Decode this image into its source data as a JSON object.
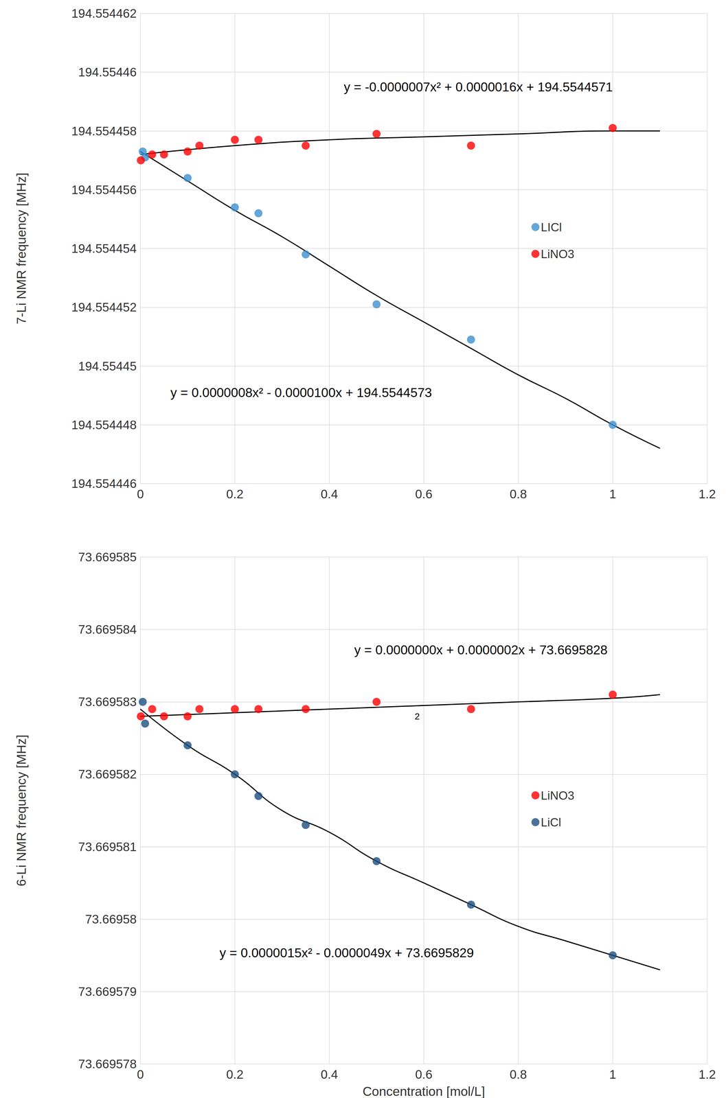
{
  "chart_data": [
    {
      "type": "scatter",
      "ylabel": "7-Li NMR frequency [MHz]",
      "xlim": [
        0,
        1.2
      ],
      "xticks": [
        0,
        0.2,
        0.4,
        0.6,
        0.8,
        1,
        1.2
      ],
      "ylim": [
        194.554446,
        194.554462
      ],
      "yticks": [
        194.554446,
        194.554448,
        194.55445,
        194.554452,
        194.554454,
        194.554456,
        194.554458,
        194.55446,
        194.554462
      ],
      "grid": true,
      "legend": "right",
      "annotations": [
        "y = -0.0000007x² + 0.0000016x + 194.5544571",
        "y = 0.0000008x² - 0.0000100x + 194.5544573"
      ],
      "series": [
        {
          "name": "LICl",
          "color": "#3d8fd1",
          "marker": "circle",
          "x": [
            0.005,
            0.01,
            0.1,
            0.2,
            0.25,
            0.35,
            0.5,
            0.7,
            1
          ],
          "values": [
            194.5544573,
            194.5544571,
            194.5544564,
            194.5544554,
            194.5544552,
            194.5544538,
            194.5544521,
            194.5544509,
            194.554448
          ]
        },
        {
          "name": "LiNO3",
          "color": "#ff0000",
          "marker": "circle",
          "x": [
            0.001,
            0.025,
            0.05,
            0.1,
            0.125,
            0.2,
            0.25,
            0.35,
            0.5,
            0.7,
            1
          ],
          "values": [
            194.554457,
            194.5544572,
            194.5544572,
            194.5544573,
            194.5544575,
            194.5544577,
            194.5544577,
            194.5544575,
            194.5544579,
            194.5544575,
            194.5544581
          ]
        },
        {
          "type": "line",
          "color": "#000000",
          "line_style": "solid",
          "x": [
            0,
            0.2,
            0.4,
            0.6,
            0.8,
            1,
            1.1
          ],
          "values": [
            194.5544572,
            194.5544575,
            194.5544577,
            194.5544578,
            194.5544579,
            194.554458,
            194.554458
          ]
        },
        {
          "type": "line",
          "color": "#000000",
          "line_style": "solid",
          "x": [
            0,
            0.1,
            0.2,
            0.3,
            0.4,
            0.5,
            0.6,
            0.7,
            0.8,
            0.9,
            1,
            1.1
          ],
          "values": [
            194.5544573,
            194.5544563,
            194.5544553,
            194.5544544,
            194.5544534,
            194.5544524,
            194.5544515,
            194.5544506,
            194.5544497,
            194.5544489,
            194.554448,
            194.5544472
          ]
        }
      ]
    },
    {
      "type": "scatter",
      "xlabel": "Concentration [mol/L]",
      "ylabel": "6-Li NMR frequency [MHz]",
      "xlim": [
        0,
        1.2
      ],
      "xticks": [
        0,
        0.2,
        0.4,
        0.6,
        0.8,
        1,
        1.2
      ],
      "ylim": [
        73.669578,
        73.669585
      ],
      "yticks": [
        73.669578,
        73.669579,
        73.66958,
        73.669581,
        73.669582,
        73.669583,
        73.669584,
        73.669585
      ],
      "grid": true,
      "legend": "right",
      "annotations": [
        "y = 0.0000000x + 0.0000002x + 73.6695828",
        "2",
        "y = 0.0000015x² - 0.0000049x + 73.6695829"
      ],
      "series": [
        {
          "name": "LiNO3",
          "color": "#ff0000",
          "marker": "circle",
          "x": [
            0.001,
            0.025,
            0.05,
            0.1,
            0.125,
            0.2,
            0.25,
            0.35,
            0.5,
            0.7,
            1
          ],
          "values": [
            73.6695828,
            73.6695829,
            73.6695828,
            73.6695828,
            73.6695829,
            73.6695829,
            73.6695829,
            73.6695829,
            73.669583,
            73.6695829,
            73.6695831
          ]
        },
        {
          "name": "LiCl",
          "color": "#1c4f80",
          "marker": "circle",
          "x": [
            0.005,
            0.01,
            0.1,
            0.2,
            0.25,
            0.35,
            0.5,
            0.7,
            1
          ],
          "values": [
            73.669583,
            73.6695827,
            73.6695824,
            73.669582,
            73.6695817,
            73.6695813,
            73.6695808,
            73.6695802,
            73.6695795
          ]
        },
        {
          "type": "line",
          "color": "#000000",
          "line_style": "solid",
          "x": [
            0,
            0.2,
            0.4,
            0.6,
            0.8,
            1,
            1.1
          ],
          "values": [
            73.6695828,
            73.66958285,
            73.6695829,
            73.66958295,
            73.669583,
            73.66958305,
            73.6695831
          ]
        },
        {
          "type": "line",
          "color": "#000000",
          "line_style": "solid",
          "x": [
            0,
            0.1,
            0.2,
            0.3,
            0.4,
            0.5,
            0.6,
            0.7,
            0.8,
            0.9,
            1,
            1.1
          ],
          "values": [
            73.6695829,
            73.6695824,
            73.669582,
            73.6695815,
            73.6695812,
            73.6695808,
            73.6695805,
            73.6695802,
            73.6695799,
            73.6695797,
            73.6695795,
            73.6695793
          ]
        }
      ]
    }
  ]
}
